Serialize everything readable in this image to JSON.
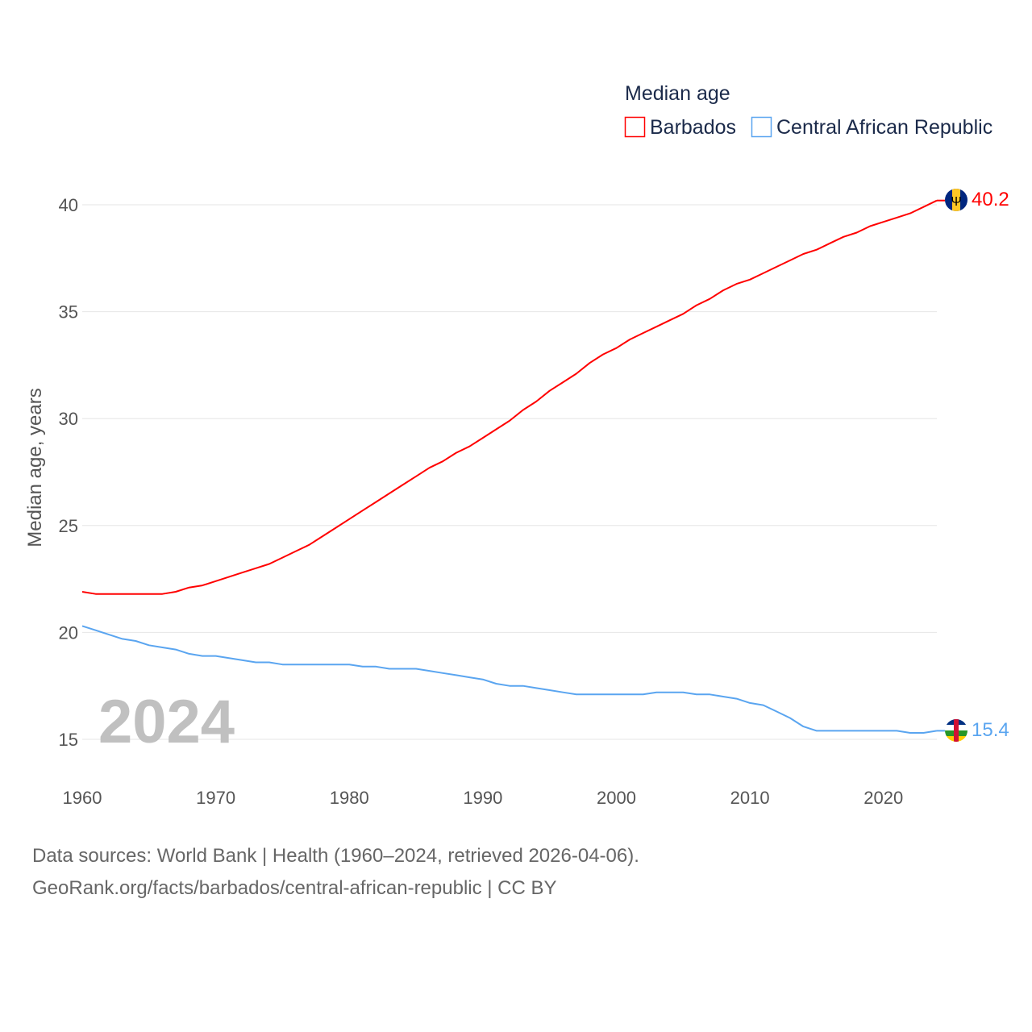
{
  "chart_data": {
    "type": "line",
    "title": "Median age",
    "ylabel": "Median age, years",
    "xlabel": "",
    "ylim": [
      15,
      40
    ],
    "xlim": [
      1960,
      2024
    ],
    "yticks": [
      15,
      20,
      25,
      30,
      35,
      40
    ],
    "xticks": [
      1960,
      1970,
      1980,
      1990,
      2000,
      2010,
      2020
    ],
    "grid": true,
    "legend_placement": "top-right",
    "year_label": "2024",
    "x": [
      1960,
      1961,
      1962,
      1963,
      1964,
      1965,
      1966,
      1967,
      1968,
      1969,
      1970,
      1971,
      1972,
      1973,
      1974,
      1975,
      1976,
      1977,
      1978,
      1979,
      1980,
      1981,
      1982,
      1983,
      1984,
      1985,
      1986,
      1987,
      1988,
      1989,
      1990,
      1991,
      1992,
      1993,
      1994,
      1995,
      1996,
      1997,
      1998,
      1999,
      2000,
      2001,
      2002,
      2003,
      2004,
      2005,
      2006,
      2007,
      2008,
      2009,
      2010,
      2011,
      2012,
      2013,
      2014,
      2015,
      2016,
      2017,
      2018,
      2019,
      2020,
      2021,
      2022,
      2023,
      2024
    ],
    "series": [
      {
        "name": "Barbados",
        "color": "#ff0000",
        "end_label": "40.2",
        "values": [
          21.9,
          21.8,
          21.8,
          21.8,
          21.8,
          21.8,
          21.8,
          21.9,
          22.1,
          22.2,
          22.4,
          22.6,
          22.8,
          23.0,
          23.2,
          23.5,
          23.8,
          24.1,
          24.5,
          24.9,
          25.3,
          25.7,
          26.1,
          26.5,
          26.9,
          27.3,
          27.7,
          28.0,
          28.4,
          28.7,
          29.1,
          29.5,
          29.9,
          30.4,
          30.8,
          31.3,
          31.7,
          32.1,
          32.6,
          33.0,
          33.3,
          33.7,
          34.0,
          34.3,
          34.6,
          34.9,
          35.3,
          35.6,
          36.0,
          36.3,
          36.5,
          36.8,
          37.1,
          37.4,
          37.7,
          37.9,
          38.2,
          38.5,
          38.7,
          39.0,
          39.2,
          39.4,
          39.6,
          39.9,
          40.2
        ]
      },
      {
        "name": "Central African Republic",
        "color": "#5aa5f0",
        "end_label": "15.4",
        "values": [
          20.3,
          20.1,
          19.9,
          19.7,
          19.6,
          19.4,
          19.3,
          19.2,
          19.0,
          18.9,
          18.9,
          18.8,
          18.7,
          18.6,
          18.6,
          18.5,
          18.5,
          18.5,
          18.5,
          18.5,
          18.5,
          18.4,
          18.4,
          18.3,
          18.3,
          18.3,
          18.2,
          18.1,
          18.0,
          17.9,
          17.8,
          17.6,
          17.5,
          17.5,
          17.4,
          17.3,
          17.2,
          17.1,
          17.1,
          17.1,
          17.1,
          17.1,
          17.1,
          17.2,
          17.2,
          17.2,
          17.1,
          17.1,
          17.0,
          16.9,
          16.7,
          16.6,
          16.3,
          16.0,
          15.6,
          15.4,
          15.4,
          15.4,
          15.4,
          15.4,
          15.4,
          15.4,
          15.3,
          15.3,
          15.4
        ]
      }
    ]
  },
  "footer": {
    "line1": "Data sources: World Bank | Health (1960–2024, retrieved 2026-04-06).",
    "line2": "GeoRank.org/facts/barbados/central-african-republic | CC BY"
  }
}
